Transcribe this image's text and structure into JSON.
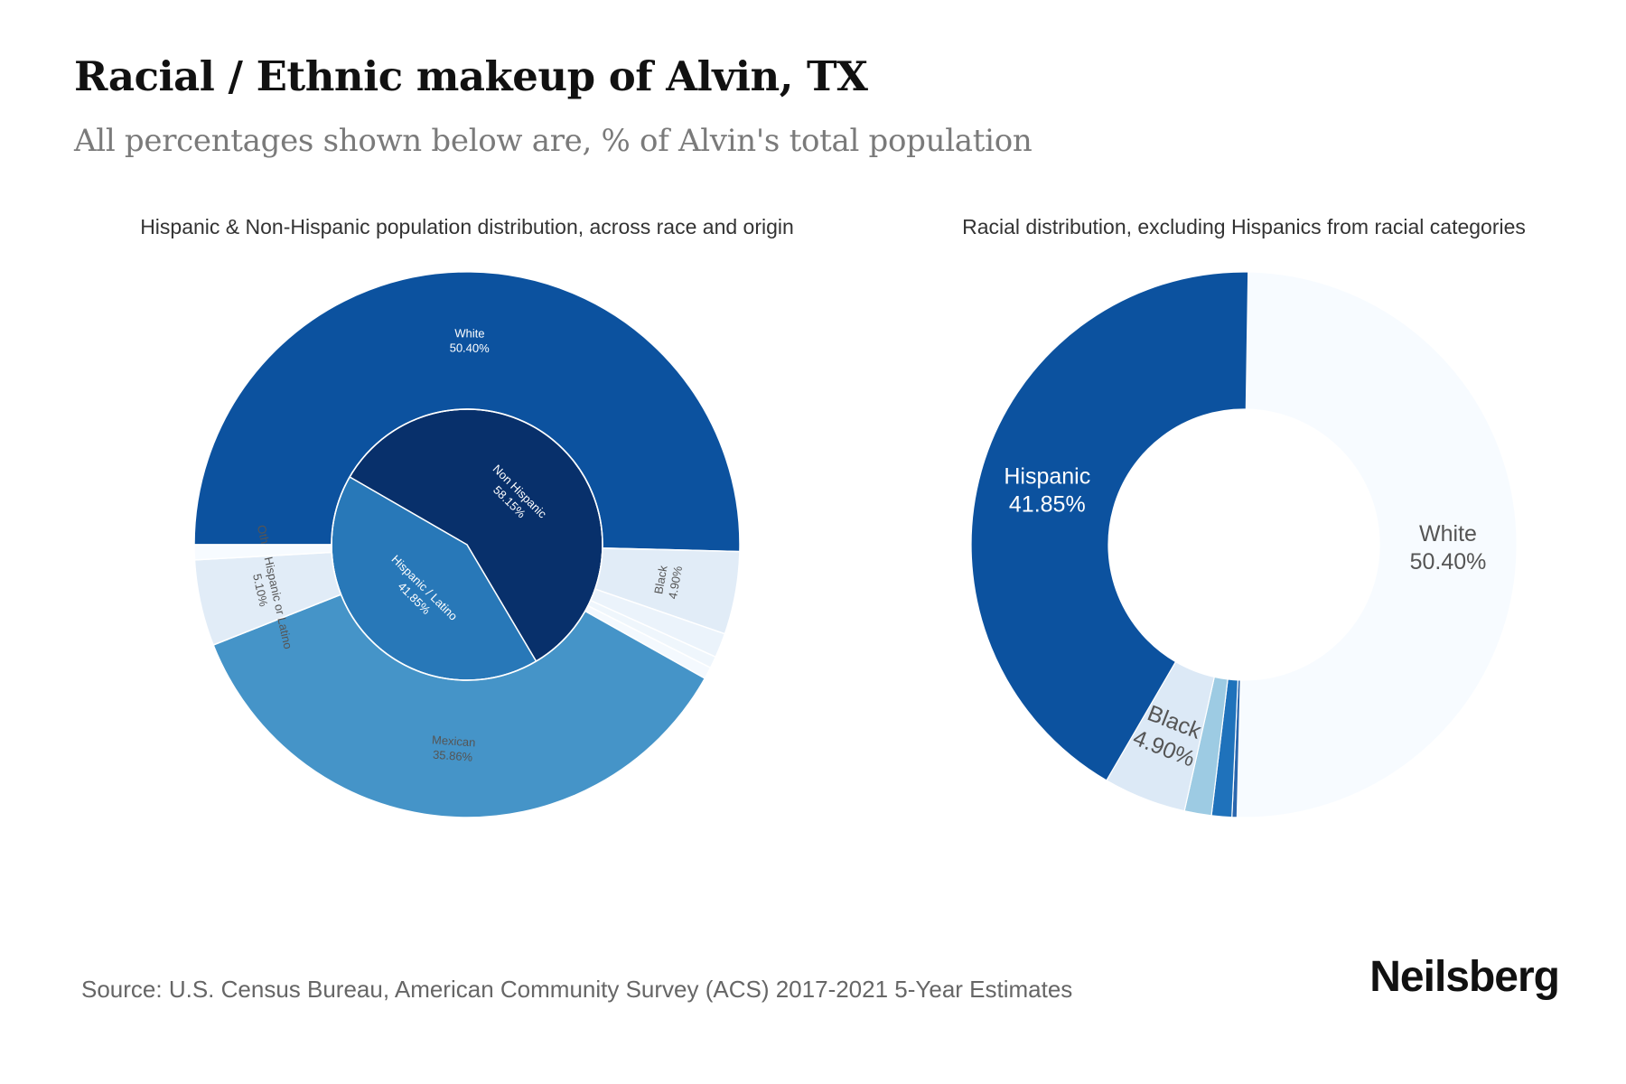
{
  "header": {
    "title": "Racial / Ethnic makeup of Alvin, TX",
    "subtitle": "All percentages shown below are, % of Alvin's total population"
  },
  "footer": {
    "source": "Source: U.S. Census Bureau, American Community Survey (ACS) 2017-2021 5-Year Estimates",
    "brand": "Neilsberg"
  },
  "chart_data": [
    {
      "type": "pie",
      "title": "Hispanic & Non-Hispanic population distribution, across race and origin",
      "inner_ring": [
        {
          "label": "Non Hispanic",
          "value": 58.15,
          "display": "58.15%",
          "color": "#08306b"
        },
        {
          "label": "Hispanic / Latino",
          "value": 41.85,
          "display": "41.85%",
          "color": "#2878b8"
        }
      ],
      "outer_ring": [
        {
          "label": "White",
          "value": 50.4,
          "display": "50.40%",
          "color": "#0c529f"
        },
        {
          "label": "Black",
          "value": 4.9,
          "display": "4.90%",
          "color": "#e1ecf7"
        },
        {
          "label": "",
          "value": 1.45,
          "display": "",
          "color": "#ebf3fb"
        },
        {
          "label": "",
          "value": 0.7,
          "display": "",
          "color": "#eff6fc"
        },
        {
          "label": "",
          "value": 0.7,
          "display": "",
          "color": "#f4f9fe"
        },
        {
          "label": "Mexican",
          "value": 35.86,
          "display": "35.86%",
          "color": "#4594c8"
        },
        {
          "label": "Other Hispanic or Latino",
          "value": 5.1,
          "display": "5.10%",
          "color": "#e1ecf7"
        },
        {
          "label": "",
          "value": 0.89,
          "display": "",
          "color": "#f7fbff"
        }
      ]
    },
    {
      "type": "pie",
      "title": "Racial distribution, excluding Hispanics from racial categories",
      "segments": [
        {
          "label": "White",
          "value": 50.4,
          "display": "50.40%",
          "color": "#f7fbff"
        },
        {
          "label": "",
          "value": 0.3,
          "display": "",
          "color": "#2a66ad"
        },
        {
          "label": "",
          "value": 1.2,
          "display": "",
          "color": "#1f72bb"
        },
        {
          "label": "",
          "value": 1.6,
          "display": "",
          "color": "#9dcbe3"
        },
        {
          "label": "Black",
          "value": 4.9,
          "display": "4.90%",
          "color": "#dce9f6"
        },
        {
          "label": "Hispanic",
          "value": 41.85,
          "display": "41.85%",
          "color": "#0c529f"
        }
      ]
    }
  ]
}
